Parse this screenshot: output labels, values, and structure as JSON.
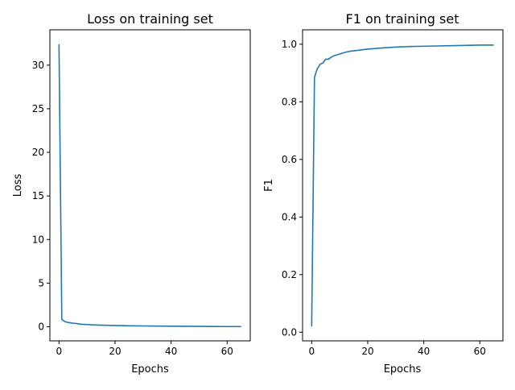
{
  "chart_data": [
    {
      "type": "line",
      "title": "Loss on training set",
      "xlabel": "Epochs",
      "ylabel": "Loss",
      "xlim": [
        -3.25,
        68.25
      ],
      "ylim": [
        -1.62,
        34.05
      ],
      "xticks": [
        0,
        20,
        40,
        60
      ],
      "yticks": [
        0,
        5,
        10,
        15,
        20,
        25,
        30
      ],
      "grid": false,
      "series": [
        {
          "color": "#1f77b4",
          "x": [
            0,
            1,
            2,
            3,
            4,
            5,
            6,
            7,
            8,
            10,
            12,
            15,
            20,
            25,
            30,
            35,
            40,
            45,
            50,
            55,
            60,
            65
          ],
          "y": [
            32.4,
            0.85,
            0.6,
            0.5,
            0.45,
            0.4,
            0.38,
            0.33,
            0.28,
            0.25,
            0.21,
            0.18,
            0.14,
            0.11,
            0.09,
            0.07,
            0.06,
            0.05,
            0.04,
            0.03,
            0.02,
            0.02
          ]
        }
      ]
    },
    {
      "type": "line",
      "title": "F1 on training set",
      "xlabel": "Epochs",
      "ylabel": "F1",
      "xlim": [
        -3.25,
        68.25
      ],
      "ylim": [
        -0.03,
        1.05
      ],
      "xticks": [
        0,
        20,
        40,
        60
      ],
      "yticks": [
        0.0,
        0.2,
        0.4,
        0.6,
        0.8,
        1.0
      ],
      "ytick_labels": [
        "0.0",
        "0.2",
        "0.4",
        "0.6",
        "0.8",
        "1.0"
      ],
      "grid": false,
      "series": [
        {
          "color": "#1f77b4",
          "x": [
            0,
            1,
            2,
            3,
            4,
            5,
            6,
            7,
            8,
            9,
            10,
            12,
            14,
            16,
            18,
            20,
            25,
            30,
            35,
            40,
            45,
            50,
            55,
            60,
            65
          ],
          "y": [
            0.02,
            0.885,
            0.915,
            0.93,
            0.935,
            0.948,
            0.948,
            0.955,
            0.96,
            0.963,
            0.966,
            0.972,
            0.976,
            0.978,
            0.981,
            0.983,
            0.987,
            0.99,
            0.992,
            0.993,
            0.994,
            0.995,
            0.996,
            0.997,
            0.997
          ]
        }
      ]
    }
  ]
}
